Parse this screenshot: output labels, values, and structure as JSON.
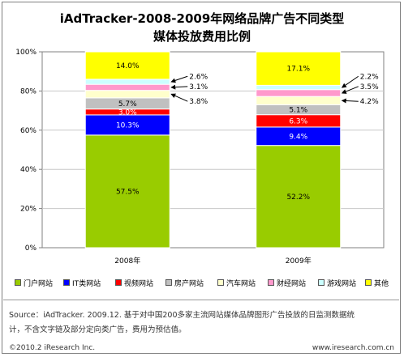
{
  "title_line1": "iAdTracker-2008-2009年网络品牌广告不同类型",
  "title_line2": "媒体投放费用比例",
  "chart_data": {
    "type": "bar",
    "stacked": true,
    "categories": [
      "2008年",
      "2009年"
    ],
    "ylim": [
      0,
      100
    ],
    "y_ticks": [
      "0%",
      "20%",
      "40%",
      "60%",
      "80%",
      "100%"
    ],
    "series": [
      {
        "name": "门户网站",
        "color": "#99cc00",
        "values": [
          57.5,
          52.2
        ],
        "labels": [
          "57.5%",
          "52.2%"
        ]
      },
      {
        "name": "IT类网站",
        "color": "#0000ff",
        "values": [
          10.3,
          9.4
        ],
        "labels": [
          "10.3%",
          "9.4%"
        ]
      },
      {
        "name": "视频网站",
        "color": "#ff0000",
        "values": [
          3.0,
          6.3
        ],
        "labels": [
          "3.0%",
          "6.3%"
        ]
      },
      {
        "name": "房产网站",
        "color": "#c0c0c0",
        "values": [
          5.7,
          5.1
        ],
        "labels": [
          "5.7%",
          "5.1%"
        ]
      },
      {
        "name": "汽车网站",
        "color": "#ffffcc",
        "values": [
          3.8,
          4.2
        ],
        "labels": [
          "3.8%",
          "4.2%"
        ]
      },
      {
        "name": "财经网站",
        "color": "#ff99cc",
        "values": [
          3.1,
          3.5
        ],
        "labels": [
          "3.1%",
          "3.5%"
        ]
      },
      {
        "name": "游戏网站",
        "color": "#ccffff",
        "values": [
          2.6,
          2.2
        ],
        "labels": [
          "2.6%",
          "2.2%"
        ]
      },
      {
        "name": "其他",
        "color": "#ffff00",
        "values": [
          14.0,
          17.1
        ],
        "labels": [
          "14.0%",
          "17.1%"
        ]
      }
    ]
  },
  "source_line1": "Source：iAdTracker. 2009.12. 基于对中国200多家主流网站媒体品牌图形广告投放的日监测数据统",
  "source_line2": "计，不含文字链及部分定向类广告，费用为预估值。",
  "copyright": "©2010.2 iResearch Inc.",
  "website": "www.iresearch.com.cn"
}
